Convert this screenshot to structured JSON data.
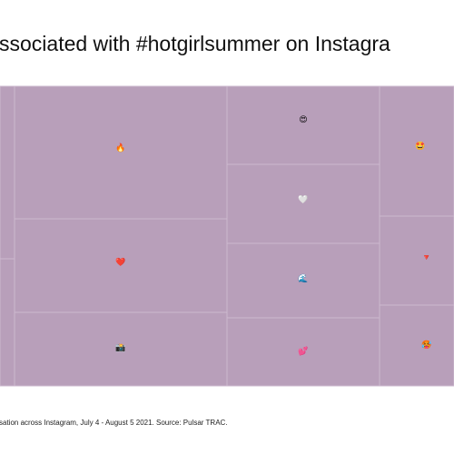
{
  "title": "ssociated with #hotgirlsummer on Instagra",
  "tiles": [
    {
      "label": "🔥"
    },
    {
      "label": "❤️"
    },
    {
      "label": "📸"
    },
    {
      "label": "😍"
    },
    {
      "label": "🤍"
    },
    {
      "label": "🌊"
    },
    {
      "label": "💕"
    },
    {
      "label": "🤩"
    },
    {
      "label": "🔻"
    },
    {
      "label": "🥵"
    }
  ],
  "footnote": "sation across Instagram, July 4 - August 5 2021. Source: Pulsar TRAC."
}
